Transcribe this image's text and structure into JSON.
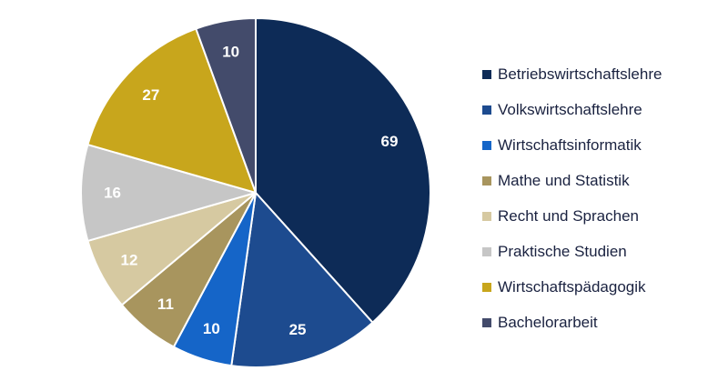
{
  "chart_data": {
    "type": "pie",
    "categories": [
      "Betriebswirtschaftslehre",
      "Volkswirtschaftslehre",
      "Wirtschaftsinformatik",
      "Mathe und Statistik",
      "Recht und Sprachen",
      "Praktische Studien",
      "Wirtschaftspädagogik",
      "Bachelorarbeit"
    ],
    "values": [
      69,
      25,
      10,
      11,
      12,
      16,
      27,
      10
    ],
    "labels": [
      "69",
      "25",
      "10",
      "11",
      "12",
      "16",
      "27",
      "10"
    ],
    "colors": [
      "#0d2b57",
      "#1d4b8f",
      "#1565c8",
      "#a8955e",
      "#d6c9a1",
      "#c6c6c6",
      "#c8a61c",
      "#434b6b"
    ],
    "start": "top",
    "direction": "clockwise",
    "legend_position": "right"
  }
}
